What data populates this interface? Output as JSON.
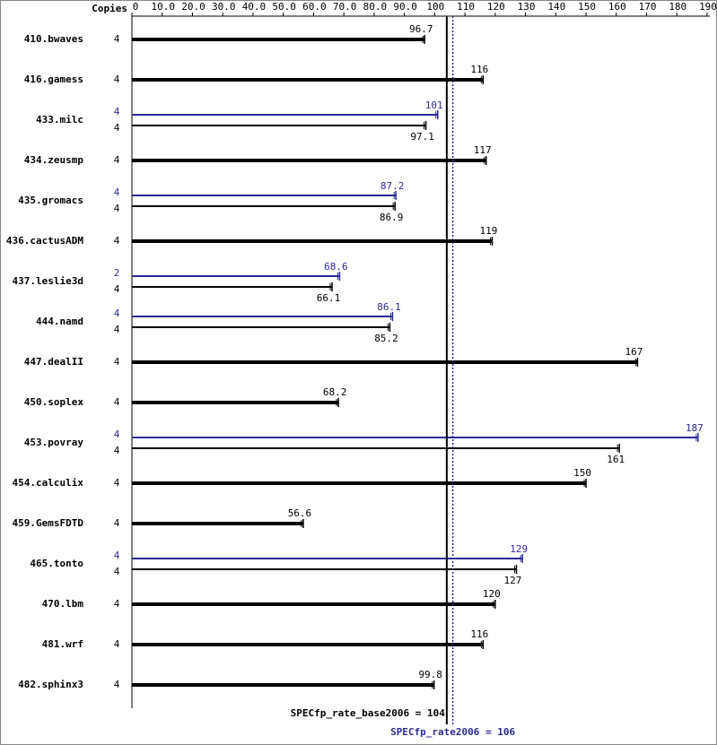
{
  "chart_data": {
    "type": "bar",
    "orientation": "horizontal",
    "copies_label": "Copies",
    "categories": [
      "410.bwaves",
      "416.gamess",
      "433.milc",
      "434.zeusmp",
      "435.gromacs",
      "436.cactusADM",
      "437.leslie3d",
      "444.namd",
      "447.dealII",
      "450.soplex",
      "453.povray",
      "454.calculix",
      "459.GemsFDTD",
      "465.tonto",
      "470.lbm",
      "481.wrf",
      "482.sphinx3"
    ],
    "series": [
      {
        "color": "#000000",
        "copies": [
          4,
          4,
          4,
          4,
          4,
          4,
          4,
          4,
          4,
          4,
          4,
          4,
          4,
          4,
          4,
          4,
          4
        ],
        "values": [
          96.7,
          116,
          97.1,
          117,
          86.9,
          119,
          66.1,
          85.2,
          167,
          68.2,
          161,
          150,
          56.6,
          127,
          120,
          116,
          99.8
        ]
      },
      {
        "color": "#2a2a96",
        "copies": [
          null,
          null,
          4,
          null,
          4,
          null,
          2,
          4,
          null,
          null,
          4,
          null,
          null,
          4,
          null,
          null,
          null
        ],
        "values": [
          null,
          null,
          101,
          null,
          87.2,
          null,
          68.6,
          86.1,
          null,
          null,
          187,
          null,
          null,
          129,
          null,
          null,
          null
        ]
      }
    ],
    "xlim": [
      0,
      190
    ],
    "xticks": [
      0,
      {
        "value": 10,
        "label": "10.0"
      },
      {
        "value": 20,
        "label": "20.0"
      },
      {
        "value": 30,
        "label": "30.0"
      },
      {
        "value": 40,
        "label": "40.0"
      },
      {
        "value": 50,
        "label": "50.0"
      },
      {
        "value": 60,
        "label": "60.0"
      },
      {
        "value": 70,
        "label": "70.0"
      },
      {
        "value": 80,
        "label": "80.0"
      },
      {
        "value": 90,
        "label": "90.0"
      },
      100,
      110,
      120,
      130,
      140,
      150,
      160,
      170,
      180,
      190
    ],
    "reference_lines": [
      {
        "value": 104,
        "label": "SPECfp_rate_base2006 = 104",
        "color": "#000000",
        "dashed": false
      },
      {
        "value": 106,
        "label": "SPECfp_rate2006 = 106",
        "color": "#2a2a96",
        "dashed": true
      }
    ]
  }
}
